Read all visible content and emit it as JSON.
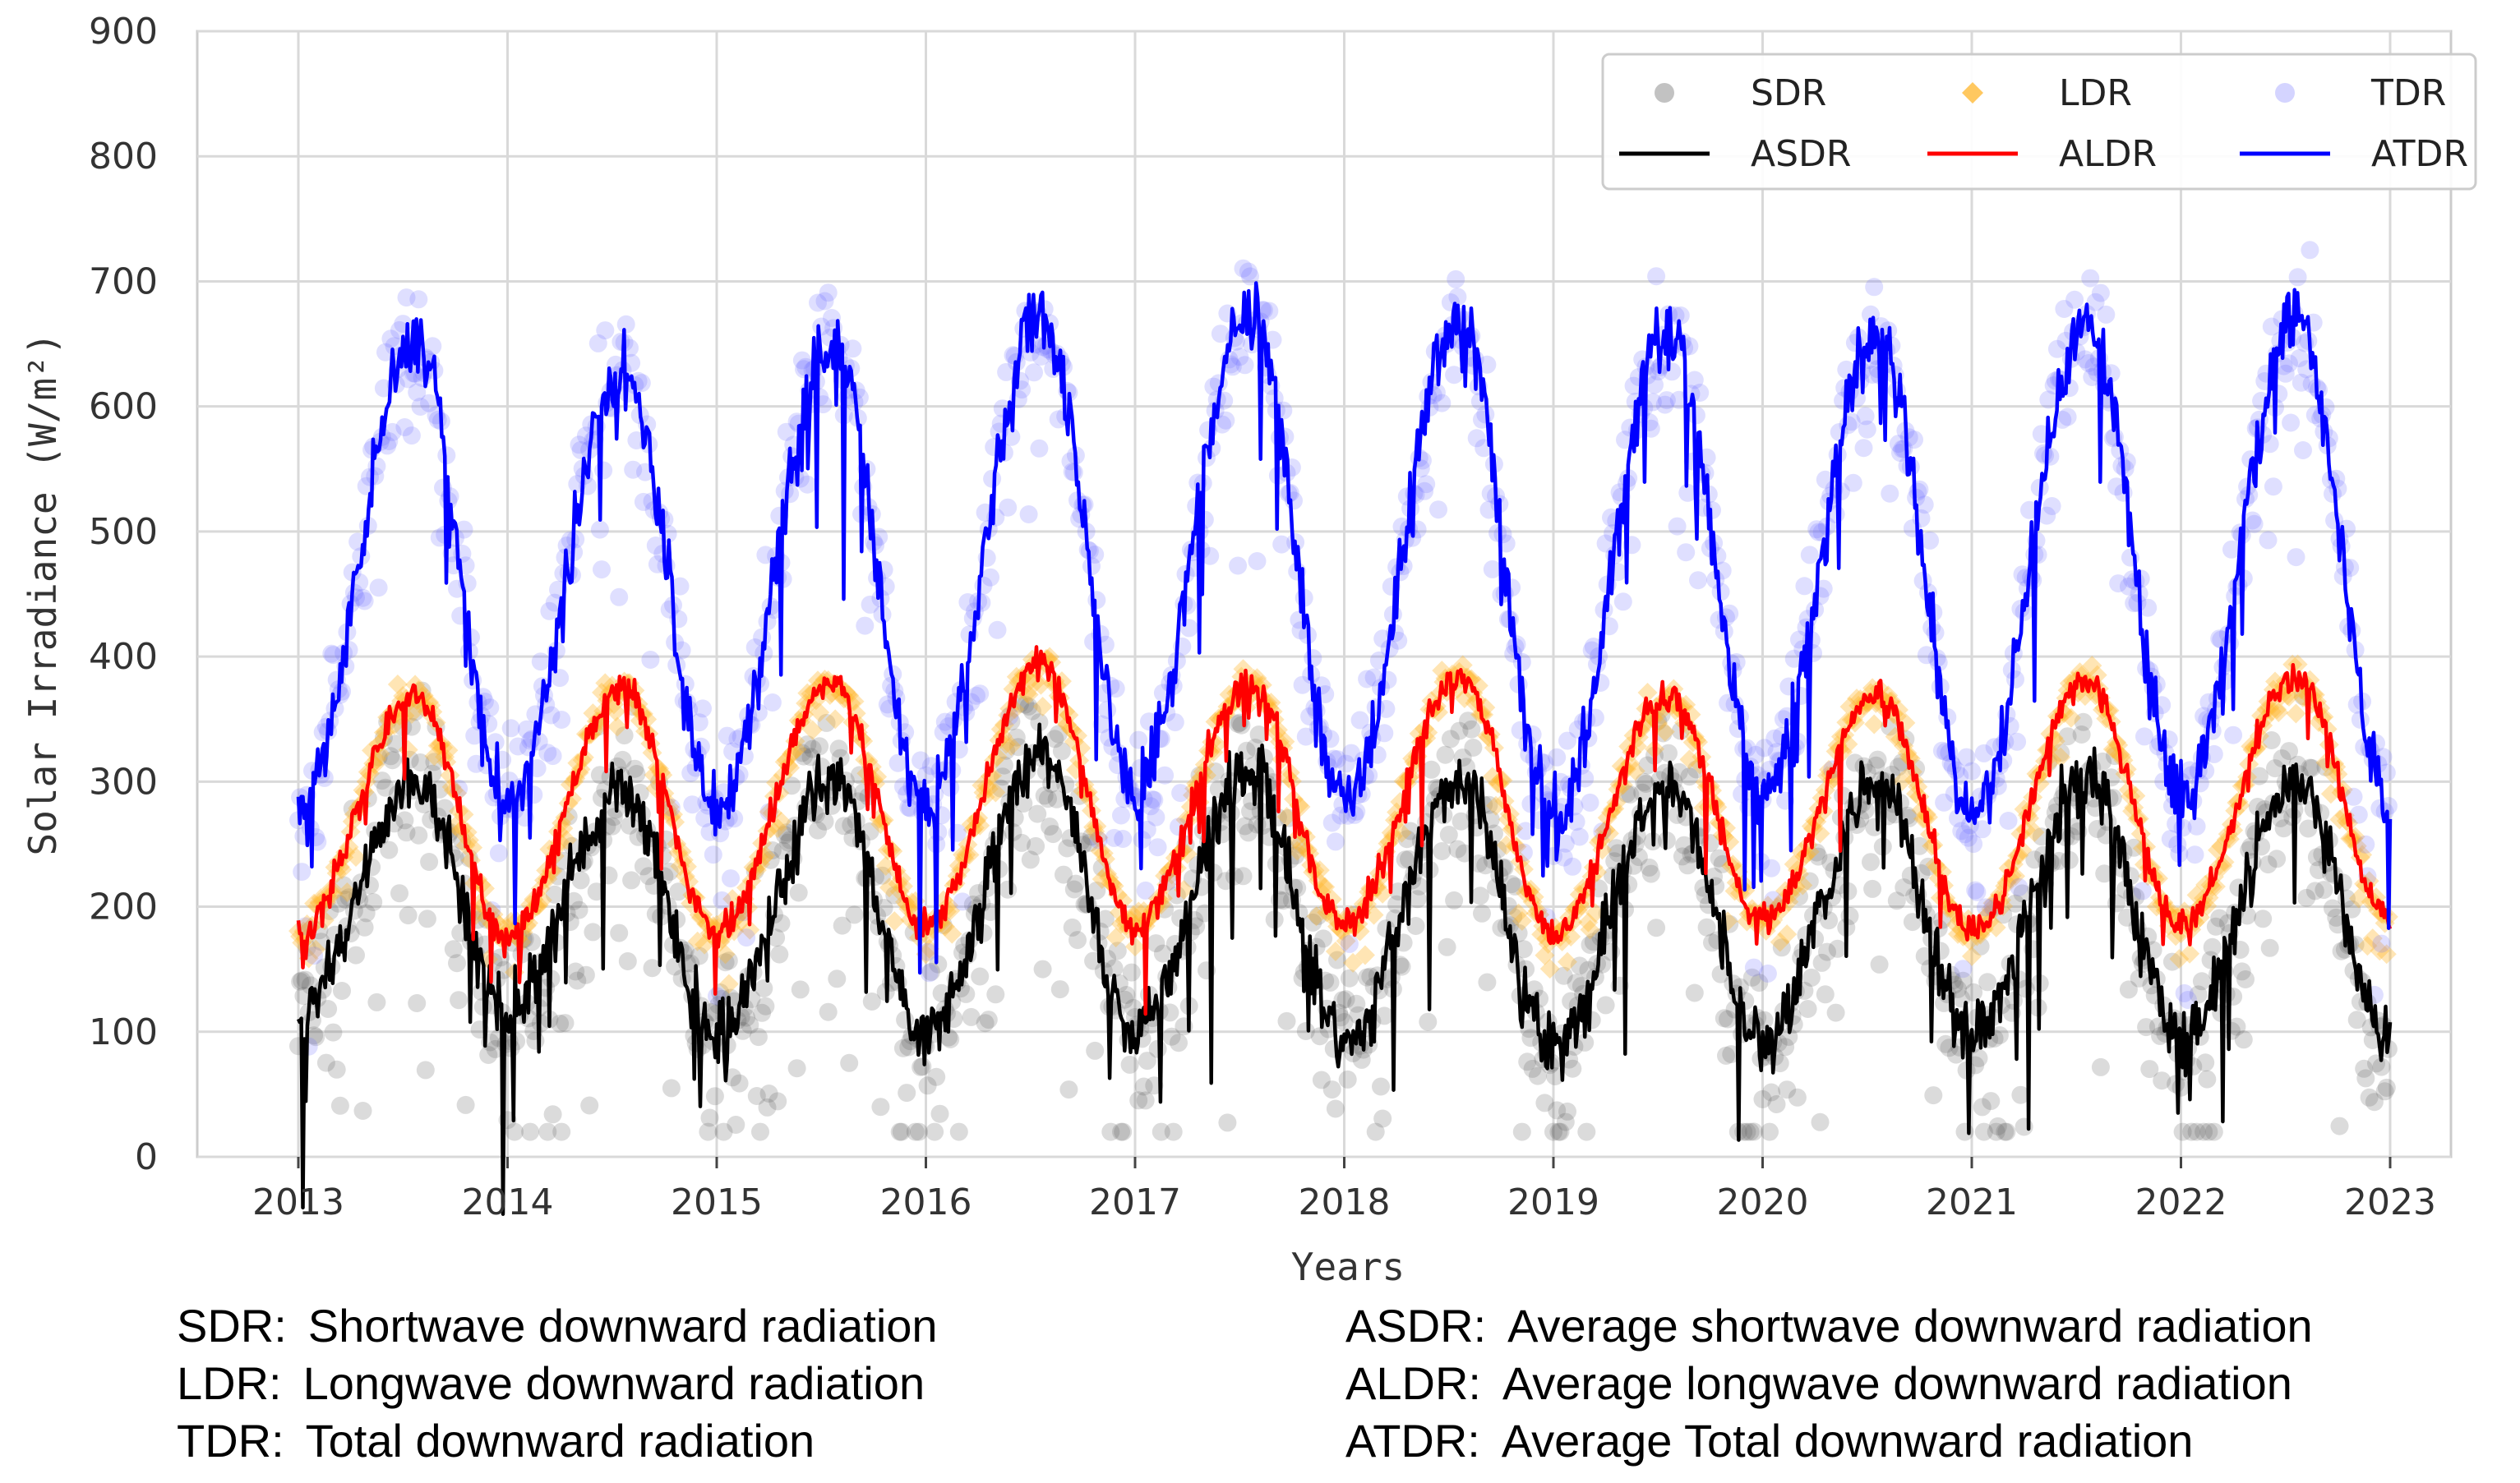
{
  "chart_data": {
    "type": "scatter",
    "title": "",
    "xlabel": "Years",
    "ylabel": "Solar Irradiance (W/m²)",
    "xlim": [
      2013,
      2023
    ],
    "ylim": [
      0,
      900
    ],
    "xticks": [
      "2013",
      "2014",
      "2015",
      "2016",
      "2017",
      "2018",
      "2019",
      "2020",
      "2021",
      "2022",
      "2023"
    ],
    "yticks": [
      "0",
      "100",
      "200",
      "300",
      "400",
      "500",
      "600",
      "700",
      "800",
      "900"
    ],
    "grid": true,
    "legend_position": "top-right",
    "series": [
      {
        "name": "SDR",
        "kind": "scatter",
        "color": "#555555",
        "description": "daily shortwave downward radiation",
        "seasonal_model": {
          "min": 100,
          "max": 305,
          "scatter_spread": 120
        }
      },
      {
        "name": "LDR",
        "kind": "scatter",
        "color": "#ffb732",
        "description": "daily longwave downward radiation",
        "seasonal_model": {
          "min": 180,
          "max": 385,
          "scatter_spread": 25
        }
      },
      {
        "name": "TDR",
        "kind": "scatter",
        "color": "#8a8aff",
        "description": "daily total downward radiation",
        "seasonal_model": {
          "min": 285,
          "max": 680,
          "scatter_spread": 120
        }
      },
      {
        "name": "ASDR",
        "kind": "line",
        "color": "#000000",
        "annual_points": [
          {
            "label": "2013 start",
            "value": 120
          },
          {
            "label": "2013 peak",
            "value": 300
          },
          {
            "label": "2014 trough",
            "value": 118
          },
          {
            "label": "2014 peak",
            "value": 295
          },
          {
            "label": "2015 trough",
            "value": 100
          },
          {
            "label": "2015 peak",
            "value": 300
          },
          {
            "label": "2016 trough",
            "value": 100
          },
          {
            "label": "2016 peak",
            "value": 320
          },
          {
            "label": "2017 trough",
            "value": 105
          },
          {
            "label": "2017 peak",
            "value": 310
          },
          {
            "label": "2018 trough",
            "value": 95
          },
          {
            "label": "2018 peak",
            "value": 300
          },
          {
            "label": "2019 trough",
            "value": 90
          },
          {
            "label": "2019 peak",
            "value": 300
          },
          {
            "label": "2020 trough",
            "value": 95
          },
          {
            "label": "2020 peak",
            "value": 300
          },
          {
            "label": "2021 trough",
            "value": 100
          },
          {
            "label": "2021 peak",
            "value": 305
          },
          {
            "label": "2022 trough",
            "value": 95
          },
          {
            "label": "2022 peak",
            "value": 300
          },
          {
            "label": "2023 end",
            "value": 92
          }
        ]
      },
      {
        "name": "ALDR",
        "kind": "line",
        "color": "#ff0000",
        "annual_points": [
          {
            "label": "2013 start",
            "value": 180
          },
          {
            "label": "2013 peak",
            "value": 370
          },
          {
            "label": "2014 trough",
            "value": 175
          },
          {
            "label": "2014 peak",
            "value": 375
          },
          {
            "label": "2015 trough",
            "value": 180
          },
          {
            "label": "2015 peak",
            "value": 380
          },
          {
            "label": "2016 trough",
            "value": 185
          },
          {
            "label": "2016 peak",
            "value": 395
          },
          {
            "label": "2017 trough",
            "value": 185
          },
          {
            "label": "2017 peak",
            "value": 380
          },
          {
            "label": "2018 trough",
            "value": 185
          },
          {
            "label": "2018 peak",
            "value": 385
          },
          {
            "label": "2019 trough",
            "value": 180
          },
          {
            "label": "2019 peak",
            "value": 370
          },
          {
            "label": "2020 trough",
            "value": 190
          },
          {
            "label": "2020 peak",
            "value": 370
          },
          {
            "label": "2021 trough",
            "value": 180
          },
          {
            "label": "2021 peak",
            "value": 380
          },
          {
            "label": "2022 trough",
            "value": 185
          },
          {
            "label": "2022 peak",
            "value": 385
          },
          {
            "label": "2023 end",
            "value": 190
          }
        ]
      },
      {
        "name": "ATDR",
        "kind": "line",
        "color": "#0000ff",
        "annual_points": [
          {
            "label": "2013 start",
            "value": 280
          },
          {
            "label": "2013 peak",
            "value": 650
          },
          {
            "label": "2014 trough",
            "value": 285
          },
          {
            "label": "2014 peak",
            "value": 630
          },
          {
            "label": "2015 trough",
            "value": 280
          },
          {
            "label": "2015 peak",
            "value": 650
          },
          {
            "label": "2016 trough",
            "value": 280
          },
          {
            "label": "2016 peak",
            "value": 670
          },
          {
            "label": "2017 trough",
            "value": 295
          },
          {
            "label": "2017 peak",
            "value": 680
          },
          {
            "label": "2018 trough",
            "value": 285
          },
          {
            "label": "2018 peak",
            "value": 670
          },
          {
            "label": "2019 trough",
            "value": 270
          },
          {
            "label": "2019 peak",
            "value": 660
          },
          {
            "label": "2020 trough",
            "value": 295
          },
          {
            "label": "2020 peak",
            "value": 660
          },
          {
            "label": "2021 trough",
            "value": 275
          },
          {
            "label": "2021 peak",
            "value": 665
          },
          {
            "label": "2022 trough",
            "value": 290
          },
          {
            "label": "2022 peak",
            "value": 670
          },
          {
            "label": "2023 end",
            "value": 285
          }
        ]
      }
    ]
  },
  "legend": {
    "items": [
      {
        "key": "sdr",
        "label": "SDR",
        "marker": "circle",
        "color": "#9a9a9a"
      },
      {
        "key": "ldr",
        "label": "LDR",
        "marker": "diamond",
        "color": "#ffc860"
      },
      {
        "key": "tdr",
        "label": "TDR",
        "marker": "circle",
        "color": "#b7b7ff"
      },
      {
        "key": "asdr",
        "label": "ASDR",
        "marker": "line",
        "color": "#000000"
      },
      {
        "key": "aldr",
        "label": "ALDR",
        "marker": "line",
        "color": "#ff0000"
      },
      {
        "key": "atdr",
        "label": "ATDR",
        "marker": "line",
        "color": "#0000ff"
      }
    ]
  },
  "notes": {
    "left": [
      {
        "abbr": "SDR:",
        "text": "Shortwave downward radiation"
      },
      {
        "abbr": "LDR:",
        "text": "Longwave downward radiation"
      },
      {
        "abbr": "TDR:",
        "text": "Total downward radiation"
      }
    ],
    "right": [
      {
        "abbr": "ASDR:",
        "text": "Average shortwave downward radiation"
      },
      {
        "abbr": "ALDR:",
        "text": "Average longwave downward radiation"
      },
      {
        "abbr": "ATDR:",
        "text": "Average Total downward radiation"
      }
    ]
  }
}
